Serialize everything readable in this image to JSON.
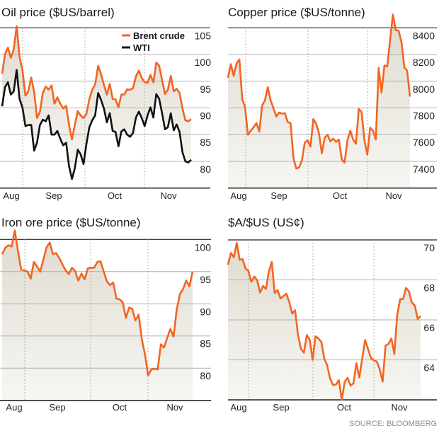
{
  "source": "SOURCE: BLOOMBERG",
  "colors": {
    "brent": "#f26522",
    "wti": "#111111",
    "fill": "#e4e1d7",
    "grid": "#b0b0b0",
    "frame": "#222222"
  },
  "chart_data": [
    {
      "type": "line",
      "title": "Oil price ($US/barrel)",
      "x_ticks": [
        "Aug",
        "Sep",
        "Oct",
        "Nov"
      ],
      "yticks": [
        105,
        100,
        95,
        90,
        85,
        80
      ],
      "ylim": [
        75,
        105
      ],
      "grid": true,
      "legend": "top-right",
      "fill": "between-series",
      "series": [
        {
          "name": "Brent crude",
          "color": "#f26522",
          "values": [
            96.4,
            100.1,
            101.3,
            99.4,
            101.0,
            105.3,
            99.6,
            97.0,
            92.3,
            93.1,
            95.7,
            93.0,
            88.1,
            89.3,
            92.8,
            94.0,
            93.4,
            94.2,
            90.8,
            92.0,
            90.8,
            89.9,
            90.4,
            86.8,
            84.1,
            86.8,
            89.4,
            88.6,
            88.1,
            88.9,
            91.7,
            93.4,
            94.4,
            97.9,
            96.3,
            94.3,
            92.5,
            94.5,
            91.7,
            91.6,
            90.1,
            92.5,
            92.5,
            93.5,
            93.4,
            93.7,
            95.9,
            97.0,
            95.6,
            94.8,
            94.7,
            96.2,
            94.8,
            98.5,
            97.9,
            95.2,
            92.6,
            93.4,
            96.0,
            93.1,
            93.6,
            92.8,
            89.9,
            87.7,
            87.5,
            87.9
          ]
        },
        {
          "name": "WTI",
          "color": "#111111",
          "values": [
            90.3,
            93.9,
            94.8,
            92.5,
            93.1,
            97.1,
            91.7,
            90.0,
            86.6,
            86.8,
            86.8,
            82.0,
            83.5,
            86.8,
            87.8,
            87.5,
            88.6,
            85.0,
            85.0,
            85.7,
            84.2,
            83.0,
            83.5,
            79.1,
            76.7,
            78.7,
            82.2,
            81.3,
            79.5,
            83.3,
            86.4,
            87.7,
            88.6,
            92.8,
            91.5,
            89.9,
            87.3,
            89.0,
            85.7,
            85.5,
            82.8,
            85.6,
            86.0,
            85.0,
            84.6,
            85.3,
            88.2,
            89.3,
            88.1,
            86.6,
            88.6,
            90.1,
            88.2,
            92.6,
            91.7,
            89.0,
            86.0,
            86.4,
            89.0,
            85.8,
            86.9,
            85.5,
            81.7,
            80.0,
            79.8,
            80.3
          ]
        }
      ]
    },
    {
      "type": "area",
      "title": "Copper price ($US/tonne)",
      "x_ticks": [
        "Aug",
        "Sep",
        "Oct",
        "Nov"
      ],
      "yticks": [
        8400,
        8200,
        8000,
        7800,
        7600,
        7400
      ],
      "ylim": [
        7200,
        8400
      ],
      "grid": true,
      "series": [
        {
          "color": "#f26522",
          "values": [
            8026,
            8128,
            8040,
            8132,
            8163,
            7867,
            7805,
            7599,
            7629,
            7655,
            7687,
            7623,
            7818,
            7858,
            7955,
            7858,
            7796,
            7735,
            7765,
            7757,
            7761,
            7694,
            7687,
            7426,
            7346,
            7355,
            7408,
            7540,
            7558,
            7510,
            7717,
            7682,
            7611,
            7461,
            7576,
            7599,
            7549,
            7570,
            7546,
            7563,
            7417,
            7390,
            7558,
            7629,
            7563,
            7532,
            7793,
            7770,
            7553,
            7452,
            7652,
            7629,
            7563,
            8100,
            7916,
            8118,
            8111,
            8308,
            8499,
            8382,
            8379,
            8294,
            8105,
            8079,
            7885
          ]
        }
      ]
    },
    {
      "type": "area",
      "title": "Iron ore price ($US/tonne)",
      "x_ticks": [
        "Aug",
        "Sep",
        "Oct",
        "Nov"
      ],
      "yticks": [
        100,
        95,
        90,
        85,
        80
      ],
      "ylim": [
        75,
        100
      ],
      "grid": true,
      "series": [
        {
          "color": "#f26522",
          "values": [
            97.7,
            98.7,
            99.1,
            98.9,
            101.4,
            98.2,
            95.3,
            95.2,
            95.0,
            93.9,
            96.5,
            95.8,
            95.0,
            96.9,
            98.8,
            99.5,
            97.7,
            97.9,
            97.1,
            96.1,
            95.2,
            94.6,
            95.6,
            95.1,
            93.6,
            94.7,
            93.8,
            95.5,
            95.6,
            95.6,
            96.5,
            96.6,
            95.0,
            93.5,
            92.9,
            93.3,
            90.8,
            90.7,
            90.2,
            87.8,
            89.4,
            89.2,
            87.4,
            88.3,
            84.5,
            82.1,
            78.9,
            79.8,
            79.9,
            79.8,
            83.7,
            83.2,
            84.7,
            86.1,
            84.9,
            89.1,
            91.5,
            92.3,
            93.6,
            92.7,
            95.0
          ]
        }
      ]
    },
    {
      "type": "area",
      "title": "$A/$US (US¢)",
      "x_ticks": [
        "Aug",
        "Sep",
        "Oct",
        "Nov"
      ],
      "yticks": [
        70,
        68,
        66,
        64
      ],
      "ylim": [
        62,
        70
      ],
      "grid": true,
      "series": [
        {
          "color": "#f26522",
          "values": [
            68.76,
            69.35,
            69.14,
            69.85,
            69.0,
            69.04,
            68.57,
            68.45,
            67.9,
            68.17,
            67.98,
            67.37,
            67.7,
            67.55,
            68.43,
            68.9,
            67.35,
            67.49,
            67.07,
            67.19,
            67.31,
            66.9,
            66.31,
            66.48,
            65.24,
            64.56,
            64.36,
            65.24,
            65.01,
            64.0,
            65.18,
            65.07,
            64.89,
            64.06,
            63.73,
            63.06,
            62.74,
            62.77,
            62.98,
            62.0,
            62.91,
            63.1,
            62.71,
            62.83,
            63.83,
            63.12,
            64.09,
            64.99,
            64.54,
            64.09,
            63.97,
            63.92,
            63.53,
            62.91,
            64.71,
            64.8,
            65.07,
            64.3,
            66.25,
            67.04,
            67.04,
            67.6,
            67.43,
            66.87,
            66.72,
            66.05,
            66.19
          ]
        }
      ]
    }
  ]
}
